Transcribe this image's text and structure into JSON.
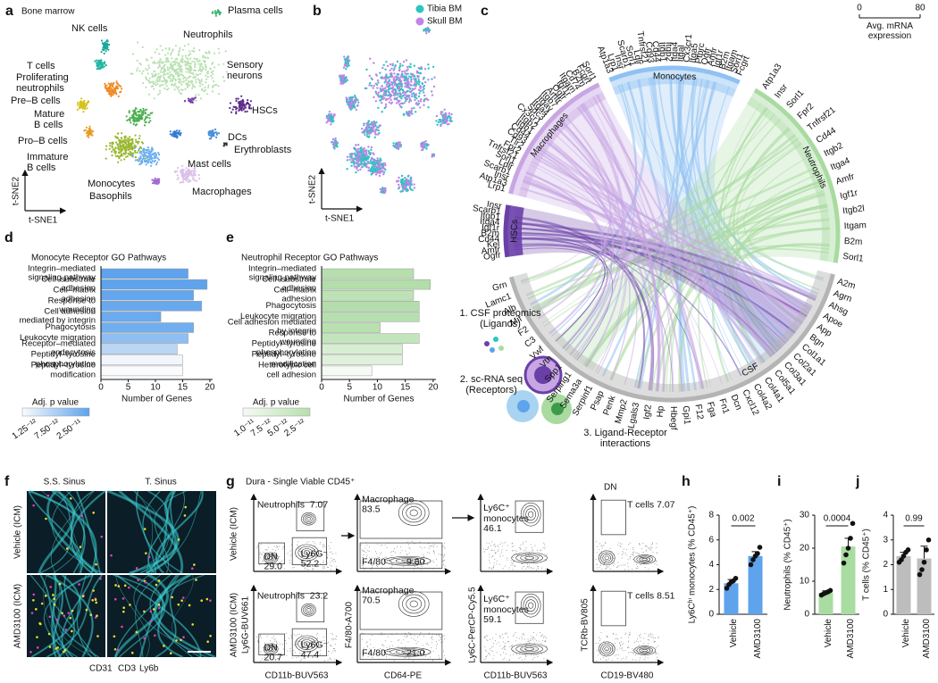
{
  "panels": {
    "a": {
      "letter": "a",
      "title": "Bone marrow",
      "clusters": [
        "Plasma cells",
        "NK cells",
        "T cells",
        "Neutrophils",
        "Proliferating\nneutrophils",
        "Pre–B cells",
        "Mature\nB cells",
        "Pro–B cells",
        "Immature\nB cells",
        "Sensory\nneurons",
        "HSCs",
        "DCs",
        "Erythroblasts",
        "Mast cells",
        "Monocytes",
        "Basophils",
        "Macrophages"
      ],
      "xlabel": "t-SNE1",
      "ylabel": "t-SNE2"
    },
    "b": {
      "letter": "b",
      "legend": [
        "Tibia BM",
        "Skull BM"
      ],
      "colors": [
        "#2cc5c0",
        "#c084e8"
      ],
      "xlabel": "t-SNE1",
      "ylabel": "t-SNE2"
    },
    "c": {
      "letter": "c",
      "groups": [
        {
          "name": "Monocytes",
          "color": "#8fc1f2",
          "genes": [
            "Atp1a3",
            "Lrp1",
            "Insr",
            "Scarb1",
            "Sorl1",
            "Ldlr",
            "Tnfrsf21",
            "Cd93",
            "Cd44",
            "Itgb1",
            "Itgb2",
            "Itga4",
            "Itgal",
            "Cx3cr1",
            "Itga5",
            "Ptprc",
            "Ogfr",
            "Amfr",
            "Igf1r",
            "B2m",
            "Itgam",
            "Sorl1",
            "Fcgrt"
          ]
        },
        {
          "name": "Neutrophils",
          "color": "#a9dba1",
          "genes": [
            "Atp1a3",
            "Insr",
            "Sorl1",
            "Fpr2",
            "Tnfrsf21",
            "Cd44",
            "Itgb2",
            "Itga4",
            "Amfr",
            "Igf1r",
            "Itgb2l",
            "Itgam",
            "B2m",
            "Sorl1"
          ]
        },
        {
          "name": "CSF",
          "color": "#b4b4b4",
          "genes": [
            "A2m",
            "Agrn",
            "Ahsg",
            "Apoe",
            "App",
            "Bgn",
            "Col1a1",
            "Col2a1",
            "Col3a1",
            "Col5a1",
            "Col4a1",
            "Col4a2",
            "Cxcl12",
            "Dcn",
            "Fn1",
            "Fga",
            "F12",
            "Gpi1",
            "Hbegf",
            "Hp",
            "Igf2",
            "Lgals3",
            "Mmp2",
            "Penk",
            "Psap",
            "Serpinf1",
            "Sema3a",
            "Serping1",
            "Spp1",
            "Vtn",
            "Vwf",
            "C3",
            "F2",
            "Mif",
            "Alb",
            "Lamc1",
            "Grn"
          ]
        },
        {
          "name": "HSCs",
          "color": "#6a3fa8",
          "genes": [
            "Ogfr",
            "Amfr",
            "Kel",
            "Cd44",
            "B2m",
            "Igf1r",
            "Itga4",
            "Itgb1",
            "Scarb1",
            "Insr"
          ]
        },
        {
          "name": "Macrophages",
          "color": "#c7a6e3",
          "genes": [
            "Lrp1",
            "Atp1a3",
            "Insr",
            "Scarb1",
            "Ldlr",
            "Sorl1",
            "Tnfrsf21",
            "Fpr2",
            "Tlr2",
            "Cd93",
            "Cd44",
            "Itgb1",
            "Itgb2",
            "Cx3cr1",
            "Sdc3",
            "Itga4",
            "Itgav",
            "Itgb7",
            "Amfr",
            "Ogfr",
            "Igf1r",
            "Itgam",
            "Cd74",
            "B2m",
            "Fcgrt",
            "Sorl1"
          ]
        }
      ],
      "legend": [
        "0",
        "80",
        "Avg. mRNA\nexpression"
      ],
      "steps": [
        "1. CSF proteomics\n(Ligands)",
        "2. sc-RNA seq\n(Receptors)",
        "3. Ligand-Receptor\ninteractions"
      ]
    },
    "f": {
      "letter": "f",
      "columns": [
        "S.S. Sinus",
        "T. Sinus"
      ],
      "rows": [
        "Vehicle (ICM)",
        "AMD3100 (ICM)"
      ],
      "stains": [
        {
          "name": "CD31",
          "color": "#3ccfd4"
        },
        {
          "name": "CD3",
          "color": "#e040c0"
        },
        {
          "name": "Ly6b",
          "color": "#e8e030"
        }
      ]
    },
    "g": {
      "letter": "g",
      "title": "Dura - Single Viable CD45⁺",
      "rows": [
        "Vehicle (ICM)",
        "AMD3100 (ICM)"
      ],
      "header4": "DN",
      "plots": [
        {
          "xlabel": "CD11b-BUV563",
          "ylabel": "Ly6G-BUV661",
          "gates": [
            [
              "Neutrophils  7.07",
              "DN\n29.0",
              "Ly6G⁻\n52.2"
            ],
            [
              "Neutrophils  23.2",
              "DN\n20.7",
              "Ly6G⁻\n47.4"
            ]
          ]
        },
        {
          "xlabel": "CD64-PE",
          "ylabel": "F4/80-A700",
          "gates": [
            [
              "Macrophage\n83.5",
              "F4/80⁻      9.60"
            ],
            [
              "Macrophage\n70.5",
              "F4/80⁻      21.0"
            ]
          ]
        },
        {
          "xlabel": "CD11b-BUV563",
          "ylabel": "Ly6C-PerCP-Cy5.5",
          "gates": [
            [
              "Ly6C⁺\nmonocytes\n46.1"
            ],
            [
              "Ly6C⁺\nmonocytes\n59.1"
            ]
          ]
        },
        {
          "xlabel": "CD19-BV480",
          "ylabel": "TCRb-BV805",
          "gates": [
            [
              "T cells 7.07"
            ],
            [
              "T cells 8.51"
            ]
          ]
        }
      ]
    }
  },
  "chart_data": [
    {
      "type": "hbar",
      "letter": "d",
      "title": "Monocyte Receptor GO Pathways",
      "categories": [
        "Integrin–mediated\nsignaling pathway",
        "Cell–substrate\nadhesion",
        "Cell–matrix\nadhesion",
        "Response to\nwounding",
        "Cell adhesion\nmediated by integrin",
        "Phagocytosis",
        "Leukocyte migration",
        "Receptor–mediated\nendocytosis",
        "Peptidyl–tyrosine\nphosphorylation",
        "Peptidyl–tyrosine\nmodification"
      ],
      "values": [
        16,
        19.5,
        17,
        18.5,
        11,
        17,
        16,
        14,
        15,
        15
      ],
      "colors": [
        "#5ea3ec",
        "#5ea3ec",
        "#63a6ed",
        "#68a9ee",
        "#6aaaee",
        "#70aeef",
        "#8fbff2",
        "#bad6f6",
        "#f2f6fc",
        "#fafbfd"
      ],
      "xlabel": "Number of Genes",
      "xlim": [
        0,
        20.5
      ],
      "xticks": [
        0,
        5,
        10,
        15,
        20
      ],
      "colorbar": {
        "title": "Adj. p value",
        "labels": [
          "1.25⁻¹²",
          "7.50⁻¹²",
          "2.50⁻¹¹"
        ]
      }
    },
    {
      "type": "hbar",
      "letter": "e",
      "title": "Neutrophil Receptor GO Pathways",
      "categories": [
        "Integrin–mediated\nsignaling pathway",
        "Cell–substrate\nadhesion",
        "Cell–matrix\nadhesion",
        "Phagocytosis",
        "Leukocyte migration",
        "Cell adhesion mediated\nby integrin",
        "Response to\nwounding",
        "Peptidyl–tyrosine\nphosphorylation",
        "Peptidyl–tyrosine\nmodification",
        "Heterotypic cell\ncell adhesion"
      ],
      "values": [
        16.5,
        19.5,
        16.5,
        17.5,
        17.5,
        10.5,
        17.5,
        14.5,
        14.5,
        9
      ],
      "colors": [
        "#b7dfae",
        "#b3ddaa",
        "#bde2b5",
        "#b3ddaa",
        "#b6dfaf",
        "#b8e0b0",
        "#c3e5bc",
        "#d8eed3",
        "#dff1da",
        "#f6faf5"
      ],
      "xlabel": "Number of Genes",
      "xlim": [
        0,
        20.5
      ],
      "xticks": [
        0,
        5,
        10,
        15,
        20
      ],
      "colorbar": {
        "title": "Adj. p value",
        "labels": [
          "1.0⁻¹¹",
          "7.5⁻¹²",
          "5.0⁻¹²",
          "2.5⁻¹²"
        ]
      }
    },
    {
      "type": "bar_dots",
      "letter": "h",
      "ylabel": "Ly6Cʰⁱ monocytes (% CD45⁺)",
      "categories": [
        "Vehicle",
        "AMD3100"
      ],
      "values": [
        2.5,
        4.7
      ],
      "errors": [
        0.3,
        0.35
      ],
      "points": [
        [
          2.1,
          2.4,
          2.6,
          2.7,
          2.9
        ],
        [
          4.0,
          4.4,
          4.7,
          4.9,
          5.4
        ]
      ],
      "colors": [
        "#5ea3ec",
        "#5ea3ec"
      ],
      "ylim": [
        0,
        8
      ],
      "yticks": [
        0,
        2,
        4,
        6,
        8
      ],
      "p_value": "0.002"
    },
    {
      "type": "bar_dots",
      "letter": "i",
      "ylabel": "Neutrophils (% CD45⁺)",
      "categories": [
        "Vehicle",
        "AMD3100"
      ],
      "values": [
        6.5,
        20.5
      ],
      "errors": [
        0.6,
        2.5
      ],
      "points": [
        [
          5.8,
          6.2,
          6.5,
          6.8,
          7.2
        ],
        [
          15.5,
          18,
          20,
          23,
          27.5
        ]
      ],
      "colors": [
        "#a8dca0",
        "#a8dca0"
      ],
      "ylim": [
        0,
        30
      ],
      "yticks": [
        0,
        10,
        20,
        30
      ],
      "p_value": "0.0004"
    },
    {
      "type": "bar_dots",
      "letter": "j",
      "ylabel": "T cells (% CD45⁺)",
      "categories": [
        "Vehicle",
        "AMD3100"
      ],
      "values": [
        2.35,
        2.25
      ],
      "errors": [
        0.15,
        0.5
      ],
      "points": [
        [
          2.1,
          2.2,
          2.35,
          2.5,
          2.6
        ],
        [
          1.6,
          1.8,
          2.1,
          2.6,
          3.0
        ]
      ],
      "colors": [
        "#bdbdbd",
        "#bdbdbd"
      ],
      "ylim": [
        0,
        4
      ],
      "yticks": [
        0,
        1,
        2,
        3,
        4
      ],
      "p_value": "0.99"
    }
  ]
}
